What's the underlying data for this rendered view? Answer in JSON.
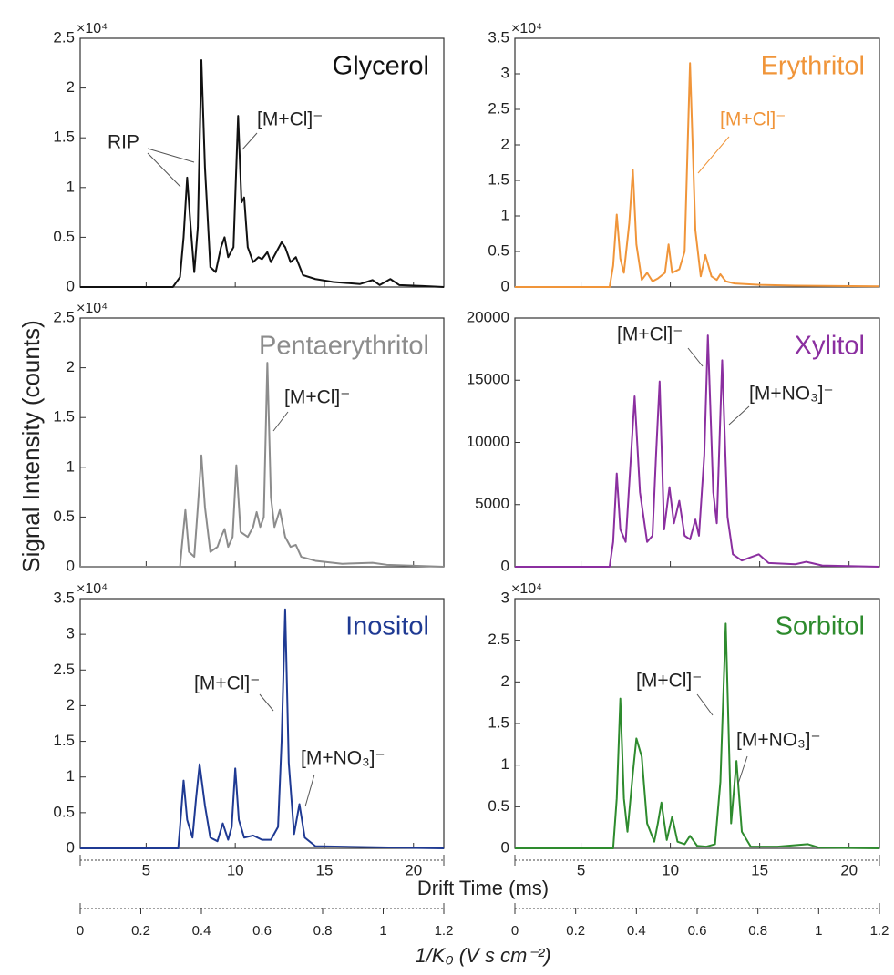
{
  "chart_data": [
    {
      "type": "line",
      "title": "Glycerol",
      "color": "#111111",
      "multiplier": "×10⁴",
      "annotations": [
        "RIP",
        "[M+Cl]⁻"
      ],
      "x": [
        1.3,
        6.5,
        6.9,
        7.1,
        7.3,
        7.5,
        7.7,
        7.9,
        8.1,
        8.3,
        8.6,
        8.9,
        9.2,
        9.4,
        9.6,
        9.9,
        10.16,
        10.35,
        10.5,
        10.7,
        11.0,
        11.3,
        11.5,
        11.8,
        12.0,
        12.3,
        12.6,
        12.8,
        13.1,
        13.4,
        13.8,
        14.5,
        15.5,
        17.0,
        17.7,
        18.1,
        18.7,
        19.2,
        20.5,
        21.7
      ],
      "values": [
        0,
        0,
        0.1,
        0.5,
        1.1,
        0.6,
        0.15,
        0.6,
        2.28,
        1.2,
        0.2,
        0.15,
        0.4,
        0.5,
        0.3,
        0.4,
        1.72,
        0.85,
        0.9,
        0.4,
        0.25,
        0.3,
        0.28,
        0.35,
        0.25,
        0.35,
        0.45,
        0.4,
        0.25,
        0.3,
        0.12,
        0.08,
        0.05,
        0.03,
        0.07,
        0.02,
        0.08,
        0.02,
        0.01,
        0
      ],
      "xlim": [
        1.3,
        21.7
      ],
      "xticks": [
        5,
        10,
        15,
        20
      ],
      "ylim": [
        0,
        2.5
      ],
      "yticks": [
        0,
        0.5,
        1,
        1.5,
        2,
        2.5
      ]
    },
    {
      "type": "line",
      "title": "Erythritol",
      "color": "#f0953a",
      "multiplier": "×10⁴",
      "annotations": [
        "[M+Cl]⁻"
      ],
      "x": [
        1.3,
        6.6,
        6.8,
        7.0,
        7.2,
        7.4,
        7.7,
        7.9,
        8.1,
        8.4,
        8.7,
        9.0,
        9.3,
        9.7,
        9.9,
        10.1,
        10.5,
        10.8,
        11.1,
        11.4,
        11.7,
        11.96,
        12.3,
        12.6,
        12.8,
        13.1,
        13.6,
        15.0,
        17.0,
        21.7
      ],
      "values": [
        0,
        0,
        0.3,
        1.02,
        0.4,
        0.2,
        0.9,
        1.65,
        0.6,
        0.1,
        0.2,
        0.08,
        0.12,
        0.2,
        0.6,
        0.2,
        0.25,
        0.5,
        3.15,
        0.8,
        0.15,
        0.45,
        0.15,
        0.1,
        0.18,
        0.08,
        0.05,
        0.03,
        0.02,
        0.01
      ],
      "xlim": [
        1.3,
        21.7
      ],
      "xticks": [
        5,
        10,
        15,
        20
      ],
      "ylim": [
        0,
        3.5
      ],
      "yticks": [
        0,
        0.5,
        1,
        1.5,
        2,
        2.5,
        3,
        3.5
      ]
    },
    {
      "type": "line",
      "title": "Pentaerythritol",
      "color": "#8c8c8c",
      "multiplier": "×10⁴",
      "annotations": [
        "[M+Cl]⁻"
      ],
      "x": [
        1.3,
        6.9,
        7.0,
        7.2,
        7.4,
        7.7,
        7.9,
        8.1,
        8.3,
        8.6,
        9.0,
        9.2,
        9.4,
        9.6,
        9.85,
        10.06,
        10.3,
        10.7,
        11.0,
        11.2,
        11.4,
        11.6,
        11.8,
        12.0,
        12.2,
        12.5,
        12.8,
        13.1,
        13.4,
        13.7,
        14.5,
        16.0,
        17.7,
        18.5,
        21.7
      ],
      "values": [
        0,
        0,
        0.2,
        0.57,
        0.15,
        0.1,
        0.6,
        1.12,
        0.6,
        0.15,
        0.2,
        0.3,
        0.38,
        0.2,
        0.3,
        1.02,
        0.35,
        0.3,
        0.4,
        0.55,
        0.4,
        0.5,
        2.05,
        0.7,
        0.4,
        0.57,
        0.3,
        0.2,
        0.22,
        0.1,
        0.06,
        0.03,
        0.04,
        0.02,
        0
      ],
      "xlim": [
        1.3,
        21.7
      ],
      "xticks": [
        5,
        10,
        15,
        20
      ],
      "ylim": [
        0,
        2.5
      ],
      "yticks": [
        0,
        0.5,
        1,
        1.5,
        2,
        2.5
      ]
    },
    {
      "type": "line",
      "title": "Xylitol",
      "color": "#8b2fa0",
      "annotations": [
        "[M+Cl]⁻",
        "[M+NO₃]⁻"
      ],
      "x": [
        1.3,
        6.6,
        6.8,
        7.0,
        7.2,
        7.5,
        7.8,
        8.0,
        8.3,
        8.7,
        9.0,
        9.2,
        9.4,
        9.65,
        9.95,
        10.2,
        10.5,
        10.8,
        11.1,
        11.4,
        11.6,
        11.9,
        12.1,
        12.4,
        12.6,
        12.9,
        13.2,
        13.5,
        14.0,
        14.95,
        15.5,
        17.0,
        17.6,
        18.5,
        21.7
      ],
      "values": [
        0,
        0,
        2000,
        7500,
        3000,
        2000,
        9000,
        13700,
        6000,
        2000,
        2500,
        9000,
        14900,
        3000,
        6400,
        3500,
        5300,
        2500,
        2200,
        3800,
        2500,
        9000,
        18600,
        6000,
        3500,
        16600,
        4000,
        1000,
        500,
        1000,
        300,
        200,
        400,
        100,
        0
      ],
      "xlim": [
        1.3,
        21.7
      ],
      "xticks": [
        5,
        10,
        15,
        20
      ],
      "ylim": [
        0,
        20000
      ],
      "yticks": [
        0,
        5000,
        10000,
        15000,
        20000
      ]
    },
    {
      "type": "line",
      "title": "Inositol",
      "color": "#1f3a93",
      "multiplier": "×10⁴",
      "annotations": [
        "[M+Cl]⁻",
        "[M+NO₃]⁻"
      ],
      "x": [
        1.3,
        6.8,
        6.9,
        7.1,
        7.3,
        7.6,
        7.8,
        8.0,
        8.3,
        8.6,
        9.0,
        9.3,
        9.6,
        9.8,
        10.0,
        10.2,
        10.5,
        11.0,
        11.5,
        12.0,
        12.4,
        12.6,
        12.8,
        13.0,
        13.3,
        13.6,
        13.9,
        14.5,
        21.7
      ],
      "values": [
        0,
        0,
        0.3,
        0.95,
        0.4,
        0.15,
        0.7,
        1.18,
        0.6,
        0.15,
        0.1,
        0.35,
        0.12,
        0.3,
        1.12,
        0.4,
        0.15,
        0.18,
        0.12,
        0.12,
        0.3,
        1.5,
        3.35,
        1.2,
        0.2,
        0.62,
        0.15,
        0.03,
        0
      ],
      "xlim": [
        1.3,
        21.7
      ],
      "xticks": [
        5,
        10,
        15,
        20
      ],
      "ylim": [
        0,
        3.5
      ],
      "yticks": [
        0,
        0.5,
        1,
        1.5,
        2,
        2.5,
        3,
        3.5
      ]
    },
    {
      "type": "line",
      "title": "Sorbitol",
      "color": "#2e8b2e",
      "multiplier": "×10⁴",
      "annotations": [
        "[M+Cl]⁻",
        "[M+NO₃]⁻"
      ],
      "x": [
        1.3,
        6.8,
        7.0,
        7.2,
        7.4,
        7.6,
        7.9,
        8.1,
        8.4,
        8.7,
        9.1,
        9.3,
        9.5,
        9.8,
        10.1,
        10.4,
        10.8,
        11.1,
        11.5,
        12.0,
        12.5,
        12.8,
        13.1,
        13.4,
        13.7,
        14.0,
        14.5,
        16.0,
        17.7,
        18.3,
        21.7
      ],
      "values": [
        0,
        0,
        0.6,
        1.8,
        0.6,
        0.2,
        0.9,
        1.32,
        1.1,
        0.3,
        0.08,
        0.3,
        0.55,
        0.1,
        0.38,
        0.08,
        0.05,
        0.15,
        0.03,
        0.02,
        0.05,
        0.8,
        2.7,
        0.3,
        1.05,
        0.2,
        0.02,
        0.02,
        0.05,
        0.01,
        0
      ],
      "xlim": [
        1.3,
        21.7
      ],
      "xticks": [
        5,
        10,
        15,
        20
      ],
      "ylim": [
        0,
        3
      ],
      "yticks": [
        0,
        0.5,
        1,
        1.5,
        2,
        2.5,
        3
      ]
    }
  ],
  "figure": {
    "ylabel": "Signal Intensity (counts)",
    "xlabel": "Drift Time (ms)",
    "x2label": "1/K₀ (V s cm⁻²)",
    "x2lim": [
      0,
      1.2
    ],
    "x2ticks": [
      0,
      0.2,
      0.4,
      0.6,
      0.8,
      1,
      1.2
    ]
  }
}
